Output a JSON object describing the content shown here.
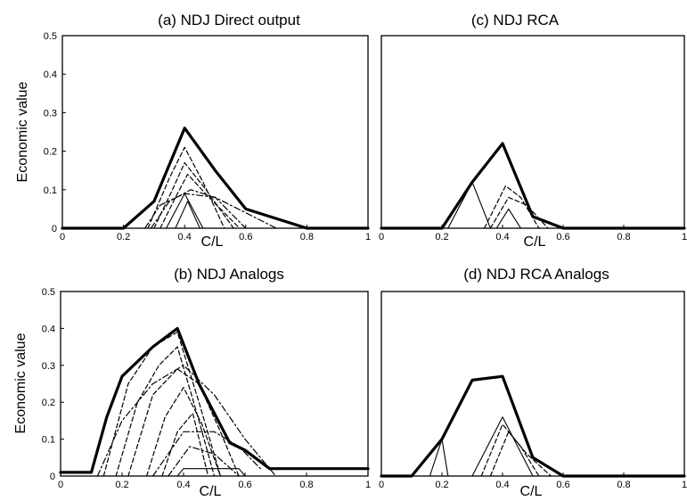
{
  "chart_data": [
    {
      "type": "line",
      "title": "(a) NDJ Direct output",
      "xlabel": "C/L",
      "ylabel": "Economic value",
      "xlim": [
        0,
        1
      ],
      "ylim": [
        0,
        0.5
      ],
      "xticks": [
        "0",
        "0.2",
        "0.4",
        "0.6",
        "0.8",
        "1"
      ],
      "yticks": [
        "0",
        "0.1",
        "0.2",
        "0.3",
        "0.4",
        "0.5"
      ],
      "grid": false,
      "series": [
        {
          "style": "envelope",
          "x": [
            0,
            0.2,
            0.3,
            0.4,
            0.5,
            0.6,
            0.8,
            1.0
          ],
          "y": [
            0,
            0,
            0.07,
            0.26,
            0.15,
            0.05,
            0,
            0
          ]
        },
        {
          "style": "dashed",
          "x": [
            0.28,
            0.35,
            0.4,
            0.46,
            0.53
          ],
          "y": [
            0,
            0.13,
            0.21,
            0.12,
            0
          ]
        },
        {
          "style": "dashed",
          "x": [
            0.3,
            0.36,
            0.4,
            0.47,
            0.56
          ],
          "y": [
            0,
            0.1,
            0.17,
            0.1,
            0
          ]
        },
        {
          "style": "dashed",
          "x": [
            0.32,
            0.37,
            0.41,
            0.48,
            0.58
          ],
          "y": [
            0,
            0.08,
            0.14,
            0.08,
            0
          ]
        },
        {
          "style": "dashdot",
          "x": [
            0.27,
            0.32,
            0.4,
            0.5,
            0.6,
            0.7
          ],
          "y": [
            0,
            0.06,
            0.09,
            0.08,
            0.04,
            0
          ]
        },
        {
          "style": "dashdot",
          "x": [
            0.29,
            0.35,
            0.42,
            0.5,
            0.6
          ],
          "y": [
            0,
            0.07,
            0.1,
            0.08,
            0
          ]
        },
        {
          "style": "solid",
          "x": [
            0.34,
            0.4,
            0.46
          ],
          "y": [
            0,
            0.09,
            0
          ]
        },
        {
          "style": "solid",
          "x": [
            0.37,
            0.41,
            0.45
          ],
          "y": [
            0,
            0.07,
            0
          ]
        }
      ]
    },
    {
      "type": "line",
      "title": "(c) NDJ RCA",
      "xlabel": "C/L",
      "ylabel": "",
      "xlim": [
        0,
        1
      ],
      "ylim": [
        0,
        0.5
      ],
      "xticks": [
        "0",
        "0.2",
        "0.4",
        "0.6",
        "0.8",
        "1"
      ],
      "yticks": [],
      "grid": false,
      "series": [
        {
          "style": "envelope",
          "x": [
            0,
            0.2,
            0.3,
            0.4,
            0.5,
            0.6,
            1.0
          ],
          "y": [
            0,
            0,
            0.12,
            0.22,
            0.03,
            0,
            0
          ]
        },
        {
          "style": "dashed",
          "x": [
            0.34,
            0.41,
            0.46,
            0.52
          ],
          "y": [
            0,
            0.11,
            0.08,
            0
          ]
        },
        {
          "style": "dashed",
          "x": [
            0.36,
            0.42,
            0.48,
            0.55
          ],
          "y": [
            0,
            0.08,
            0.06,
            0
          ]
        },
        {
          "style": "solid",
          "x": [
            0.22,
            0.3,
            0.36
          ],
          "y": [
            0,
            0.12,
            0
          ]
        },
        {
          "style": "solid",
          "x": [
            0.38,
            0.42,
            0.46
          ],
          "y": [
            0,
            0.05,
            0
          ]
        }
      ]
    },
    {
      "type": "line",
      "title": "(b) NDJ Analogs",
      "xlabel": "C/L",
      "ylabel": "Economic value",
      "xlim": [
        0,
        1
      ],
      "ylim": [
        0,
        0.5
      ],
      "xticks": [
        "0",
        "0.2",
        "0.4",
        "0.6",
        "0.8",
        "1"
      ],
      "yticks": [
        "0",
        "0.1",
        "0.2",
        "0.3",
        "0.4",
        "0.5"
      ],
      "grid": false,
      "series": [
        {
          "style": "envelope",
          "x": [
            0,
            0.1,
            0.15,
            0.2,
            0.3,
            0.38,
            0.45,
            0.55,
            0.6,
            0.68,
            1.0
          ],
          "y": [
            0.01,
            0.01,
            0.16,
            0.27,
            0.35,
            0.4,
            0.25,
            0.09,
            0.07,
            0.02,
            0.02
          ]
        },
        {
          "style": "dashed",
          "x": [
            0.14,
            0.22,
            0.3,
            0.38,
            0.45,
            0.52
          ],
          "y": [
            0,
            0.25,
            0.35,
            0.39,
            0.2,
            0
          ]
        },
        {
          "style": "dashed",
          "x": [
            0.18,
            0.25,
            0.32,
            0.38,
            0.44,
            0.5
          ],
          "y": [
            0,
            0.2,
            0.3,
            0.35,
            0.18,
            0
          ]
        },
        {
          "style": "dashed",
          "x": [
            0.22,
            0.3,
            0.38,
            0.45,
            0.52,
            0.58
          ],
          "y": [
            0,
            0.22,
            0.29,
            0.25,
            0.12,
            0
          ]
        },
        {
          "style": "dashed",
          "x": [
            0.28,
            0.34,
            0.4,
            0.46,
            0.52
          ],
          "y": [
            0,
            0.16,
            0.24,
            0.14,
            0
          ]
        },
        {
          "style": "dashed",
          "x": [
            0.33,
            0.38,
            0.43,
            0.48
          ],
          "y": [
            0,
            0.12,
            0.17,
            0
          ]
        },
        {
          "style": "dashdot",
          "x": [
            0.12,
            0.2,
            0.3,
            0.4,
            0.5,
            0.6,
            0.7
          ],
          "y": [
            0,
            0.15,
            0.25,
            0.3,
            0.22,
            0.1,
            0
          ]
        },
        {
          "style": "dashdot",
          "x": [
            0.3,
            0.4,
            0.5,
            0.58,
            0.65
          ],
          "y": [
            0,
            0.12,
            0.12,
            0.08,
            0.02
          ]
        },
        {
          "style": "dashdot",
          "x": [
            0.35,
            0.42,
            0.5,
            0.58
          ],
          "y": [
            0,
            0.08,
            0.06,
            0
          ]
        },
        {
          "style": "solid",
          "x": [
            0.38,
            0.4,
            0.58,
            0.6
          ],
          "y": [
            0,
            0.02,
            0.02,
            0
          ]
        }
      ]
    },
    {
      "type": "line",
      "title": "(d) NDJ RCA Analogs",
      "xlabel": "C/L",
      "ylabel": "",
      "xlim": [
        0,
        1
      ],
      "ylim": [
        0,
        0.5
      ],
      "xticks": [
        "0",
        "0.2",
        "0.4",
        "0.6",
        "0.8",
        "1"
      ],
      "yticks": [],
      "grid": false,
      "series": [
        {
          "style": "envelope",
          "x": [
            0,
            0.1,
            0.2,
            0.3,
            0.4,
            0.5,
            0.6,
            1.0
          ],
          "y": [
            0,
            0,
            0.1,
            0.26,
            0.27,
            0.05,
            0,
            0
          ]
        },
        {
          "style": "solid",
          "x": [
            0.16,
            0.2,
            0.22
          ],
          "y": [
            0,
            0.1,
            0
          ]
        },
        {
          "style": "solid",
          "x": [
            0.3,
            0.4,
            0.5
          ],
          "y": [
            0,
            0.16,
            0
          ]
        },
        {
          "style": "dashed",
          "x": [
            0.33,
            0.4,
            0.46,
            0.52
          ],
          "y": [
            0,
            0.14,
            0.08,
            0
          ]
        },
        {
          "style": "dashed",
          "x": [
            0.36,
            0.42,
            0.48,
            0.56
          ],
          "y": [
            0,
            0.12,
            0.06,
            0
          ]
        }
      ]
    }
  ]
}
